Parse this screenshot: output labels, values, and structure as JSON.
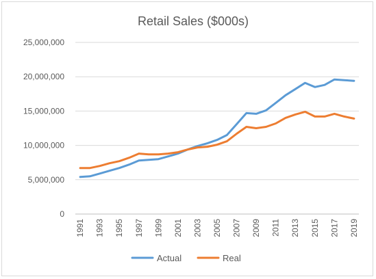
{
  "chart_data": {
    "type": "line",
    "title": "Retail Sales ($000s)",
    "xlabel": "",
    "ylabel": "",
    "ylim": [
      0,
      25000000
    ],
    "y_ticks": [
      0,
      5000000,
      10000000,
      15000000,
      20000000,
      25000000
    ],
    "y_tick_labels": [
      "0",
      "5,000,000",
      "10,000,000",
      "15,000,000",
      "20,000,000",
      "25,000,000"
    ],
    "x": [
      1991,
      1992,
      1993,
      1994,
      1995,
      1996,
      1997,
      1998,
      1999,
      2000,
      2001,
      2002,
      2003,
      2004,
      2005,
      2006,
      2007,
      2008,
      2009,
      2010,
      2011,
      2012,
      2013,
      2014,
      2015,
      2016,
      2017,
      2018,
      2019
    ],
    "x_tick_labels": [
      "1991",
      "1993",
      "1995",
      "1997",
      "1999",
      "2001",
      "2003",
      "2005",
      "2007",
      "2009",
      "2011",
      "2013",
      "2015",
      "2017",
      "2019"
    ],
    "grid": "horizontal",
    "legend_position": "bottom",
    "series": [
      {
        "name": "Actual",
        "color": "#5b9bd5",
        "values": [
          5400000,
          5500000,
          5900000,
          6300000,
          6700000,
          7200000,
          7800000,
          7900000,
          8000000,
          8400000,
          8800000,
          9400000,
          9900000,
          10300000,
          10800000,
          11500000,
          13100000,
          14700000,
          14600000,
          15100000,
          16200000,
          17300000,
          18200000,
          19100000,
          18500000,
          18800000,
          19600000,
          19500000,
          19400000
        ]
      },
      {
        "name": "Real",
        "color": "#ed7d31",
        "values": [
          6700000,
          6700000,
          7000000,
          7400000,
          7700000,
          8200000,
          8800000,
          8700000,
          8700000,
          8800000,
          9000000,
          9400000,
          9700000,
          9800000,
          10100000,
          10600000,
          11700000,
          12700000,
          12500000,
          12700000,
          13200000,
          14000000,
          14500000,
          14900000,
          14200000,
          14200000,
          14600000,
          14200000,
          13900000
        ]
      }
    ]
  }
}
